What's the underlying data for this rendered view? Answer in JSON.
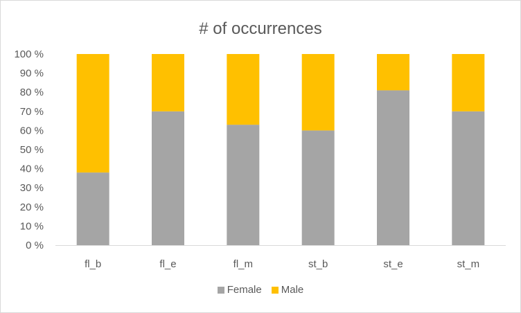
{
  "chart_data": {
    "type": "bar",
    "stacked": true,
    "percent": true,
    "title": "# of occurrences",
    "xlabel": "",
    "ylabel": "",
    "categories": [
      "fl_b",
      "fl_e",
      "fl_m",
      "st_b",
      "st_e",
      "st_m"
    ],
    "series": [
      {
        "name": "Female",
        "color": "#a5a5a5",
        "values": [
          38,
          70,
          63,
          60,
          81,
          70
        ]
      },
      {
        "name": "Male",
        "color": "#ffc000",
        "values": [
          62,
          30,
          37,
          40,
          19,
          30
        ]
      }
    ],
    "ylim": [
      0,
      100
    ],
    "yticks": [
      "0 %",
      "10 %",
      "20 %",
      "30 %",
      "40 %",
      "50 %",
      "60 %",
      "70 %",
      "80 %",
      "90 %",
      "100 %"
    ],
    "grid": false,
    "legend_position": "bottom"
  }
}
